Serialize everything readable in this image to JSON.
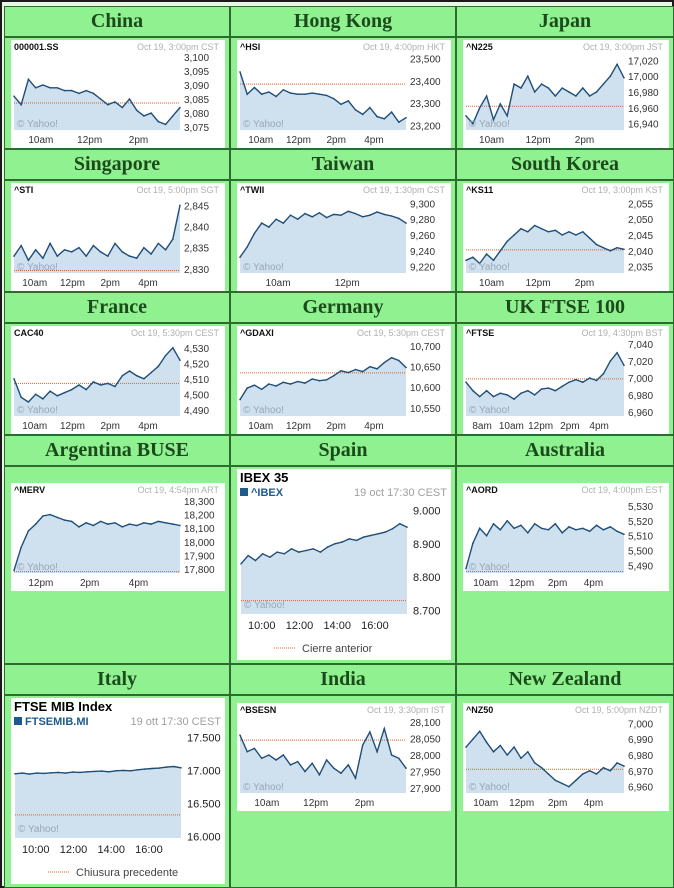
{
  "colors": {
    "cell_background": "#90f190",
    "cell_border": "#2e6b2e",
    "heading_text": "#1c4a1c",
    "line": "#1f4e79",
    "area_fill": "#cfe0ee",
    "baseline_dotted": "#d9602b",
    "symbol_square": "#1f5a8c"
  },
  "watermark": "© Yahoo!",
  "chart_data": [
    {
      "region": "China",
      "type": "area",
      "symbol": "000001.SS",
      "stamp": "Oct 19, 3:00pm CST",
      "x_ticks": [
        "10am",
        "12pm",
        "2pm"
      ],
      "y_ticks": [
        "3,100",
        "3,095",
        "3,090",
        "3,085",
        "3,080",
        "3,075"
      ],
      "ylim": [
        3074,
        3101
      ],
      "prev_close": 3083.6,
      "y": [
        3086,
        3083,
        3092,
        3089,
        3090,
        3089,
        3089,
        3088,
        3088,
        3087,
        3088,
        3087,
        3085,
        3083,
        3084,
        3082,
        3085,
        3081,
        3079,
        3080,
        3077,
        3076,
        3079,
        3082
      ]
    },
    {
      "region": "Hong Kong",
      "type": "area",
      "symbol": "^HSI",
      "stamp": "Oct 19, 4:00pm HKT",
      "x_ticks": [
        "10am",
        "12pm",
        "2pm",
        "4pm"
      ],
      "y_ticks": [
        "23,500",
        "23,400",
        "23,300",
        "23,200"
      ],
      "ylim": [
        23180,
        23520
      ],
      "prev_close": 23385,
      "y": [
        23440,
        23340,
        23370,
        23340,
        23350,
        23330,
        23360,
        23345,
        23340,
        23340,
        23345,
        23340,
        23335,
        23320,
        23295,
        23310,
        23270,
        23250,
        23280,
        23240,
        23230,
        23260,
        23215,
        23235
      ]
    },
    {
      "region": "Japan",
      "type": "area",
      "symbol": "^N225",
      "stamp": "Oct 19, 3:00pm JST",
      "x_ticks": [
        "10am",
        "12pm",
        "2pm"
      ],
      "y_ticks": [
        "17,020",
        "17,000",
        "16,980",
        "16,960",
        "16,940"
      ],
      "ylim": [
        16932,
        17028
      ],
      "prev_close": 16962,
      "y": [
        16950,
        16940,
        16960,
        16975,
        16945,
        16965,
        16950,
        16990,
        16985,
        17000,
        16980,
        16990,
        16985,
        16975,
        16985,
        16980,
        16975,
        16985,
        16975,
        16980,
        16990,
        17000,
        17015,
        16998
      ]
    },
    {
      "region": "Singapore",
      "type": "area",
      "symbol": "^STI",
      "stamp": "Oct 19, 5:00pm SGT",
      "x_ticks": [
        "10am",
        "12pm",
        "2pm",
        "4pm"
      ],
      "y_ticks": [
        "2,845",
        "2,840",
        "2,835",
        "2,830"
      ],
      "ylim": [
        2829,
        2847
      ],
      "prev_close": 2829.6,
      "y": [
        2833,
        2835.5,
        2832,
        2834.5,
        2832.5,
        2836,
        2833,
        2834.5,
        2834,
        2835,
        2833,
        2835.5,
        2834,
        2833,
        2836,
        2834,
        2833,
        2832.5,
        2835,
        2833.5,
        2836,
        2834.5,
        2837,
        2845
      ]
    },
    {
      "region": "Taiwan",
      "type": "area",
      "symbol": "^TWII",
      "stamp": "Oct 19, 1:30pm CST",
      "x_ticks": [
        "10am",
        "12pm"
      ],
      "y_ticks": [
        "9,300",
        "9,280",
        "9,260",
        "9,240",
        "9,220"
      ],
      "ylim": [
        9212,
        9308
      ],
      "prev_close": null,
      "y": [
        9232,
        9245,
        9262,
        9275,
        9270,
        9280,
        9275,
        9285,
        9280,
        9287,
        9283,
        9288,
        9282,
        9286,
        9285,
        9290,
        9287,
        9283,
        9285,
        9289,
        9286,
        9284,
        9281,
        9275
      ]
    },
    {
      "region": "South Korea",
      "type": "area",
      "symbol": "^KS11",
      "stamp": "Oct 19, 3:00pm KST",
      "x_ticks": [
        "10am",
        "12pm",
        "2pm"
      ],
      "y_ticks": [
        "2,055",
        "2,050",
        "2,045",
        "2,040",
        "2,035"
      ],
      "ylim": [
        2033,
        2057
      ],
      "prev_close": 2040.3,
      "y": [
        2037,
        2038,
        2036,
        2039,
        2037,
        2040,
        2043,
        2045,
        2047,
        2046,
        2048,
        2047,
        2046,
        2046.5,
        2045,
        2046,
        2045,
        2046,
        2044,
        2042,
        2041,
        2040,
        2041,
        2040.5
      ]
    },
    {
      "region": "France",
      "type": "area",
      "symbol": "CAC40",
      "stamp": "Oct 19, 5:30pm CEST",
      "x_ticks": [
        "10am",
        "12pm",
        "2pm",
        "4pm"
      ],
      "y_ticks": [
        "4,530",
        "4,520",
        "4,510",
        "4,500",
        "4,490"
      ],
      "ylim": [
        4486,
        4535
      ],
      "prev_close": 4507,
      "y": [
        4510,
        4498,
        4495,
        4500,
        4497,
        4502,
        4499,
        4501,
        4503,
        4506,
        4503,
        4508,
        4506,
        4507,
        4505,
        4512,
        4515,
        4512,
        4510,
        4514,
        4518,
        4525,
        4530,
        4522
      ]
    },
    {
      "region": "Germany",
      "type": "area",
      "symbol": "^GDAXI",
      "stamp": "Oct 19, 5:30pm CEST",
      "x_ticks": [
        "10am",
        "12pm",
        "2pm",
        "4pm"
      ],
      "y_ticks": [
        "10,700",
        "10,650",
        "10,600",
        "10,550"
      ],
      "ylim": [
        10530,
        10715
      ],
      "prev_close": 10635,
      "y": [
        10570,
        10598,
        10605,
        10595,
        10608,
        10603,
        10612,
        10608,
        10614,
        10610,
        10620,
        10616,
        10618,
        10628,
        10640,
        10636,
        10643,
        10638,
        10650,
        10645,
        10660,
        10672,
        10665,
        10648
      ]
    },
    {
      "region": "UK FTSE 100",
      "type": "area",
      "symbol": "^FTSE",
      "stamp": "Oct 19, 4:30pm BST",
      "x_ticks": [
        "8am",
        "10am",
        "12pm",
        "2pm",
        "4pm"
      ],
      "y_ticks": [
        "7,040",
        "7,020",
        "7,000",
        "6,980",
        "6,960"
      ],
      "ylim": [
        6955,
        7045
      ],
      "prev_close": 6999,
      "y": [
        6995,
        6985,
        6978,
        6985,
        6978,
        6982,
        6980,
        6975,
        6982,
        6985,
        6980,
        6987,
        6988,
        6985,
        6990,
        6995,
        6998,
        6995,
        7000,
        6997,
        7005,
        7020,
        7030,
        7015
      ]
    },
    {
      "region": "Argentina BUSE",
      "type": "area",
      "symbol": "^MERV",
      "stamp": "Oct 19, 4:54pm ART",
      "x_ticks": [
        "12pm",
        "2pm",
        "4pm"
      ],
      "y_ticks": [
        "18,300",
        "18,200",
        "18,100",
        "18,000",
        "17,900",
        "17,800"
      ],
      "ylim": [
        17770,
        18330
      ],
      "prev_close": 17780,
      "y": [
        17790,
        17960,
        18080,
        18130,
        18190,
        18200,
        18180,
        18160,
        18150,
        18110,
        18140,
        18120,
        18150,
        18130,
        18140,
        18110,
        18130,
        18120,
        18140,
        18130,
        18150,
        18140,
        18130,
        18120
      ]
    },
    {
      "region": "Spain",
      "type": "area",
      "title": "IBEX 35",
      "symbol": "^IBEX",
      "stamp": "19 oct 17:30 CEST",
      "legend": "Cierre anterior",
      "x_ticks": [
        "10:00",
        "12:00",
        "14:00",
        "16:00"
      ],
      "y_ticks": [
        "9.000",
        "8.900",
        "8.800",
        "8.700"
      ],
      "ylim": [
        8690,
        9010
      ],
      "prev_close": 8730,
      "y": [
        8840,
        8865,
        8850,
        8870,
        8860,
        8875,
        8870,
        8885,
        8875,
        8880,
        8885,
        8875,
        8890,
        8900,
        8905,
        8915,
        8910,
        8920,
        8925,
        8930,
        8935,
        8945,
        8960,
        8950
      ]
    },
    {
      "region": "Australia",
      "type": "area",
      "symbol": "^AORD",
      "stamp": "Oct 19, 4:00pm EST",
      "x_ticks": [
        "10am",
        "12pm",
        "2pm",
        "4pm"
      ],
      "y_ticks": [
        "5,530",
        "5,520",
        "5,510",
        "5,500",
        "5,490"
      ],
      "ylim": [
        5485,
        5536
      ],
      "prev_close": 5486,
      "y": [
        5488,
        5505,
        5515,
        5510,
        5518,
        5514,
        5520,
        5515,
        5517,
        5512,
        5518,
        5515,
        5514,
        5518,
        5512,
        5516,
        5514,
        5515,
        5513,
        5517,
        5514,
        5516,
        5513,
        5511
      ]
    },
    {
      "region": "Italy",
      "type": "area",
      "title": "FTSE MIB Index",
      "symbol": "FTSEMIB.MI",
      "stamp": "19 ott 17:30 CEST",
      "legend": "Chiusura precedente",
      "x_ticks": [
        "10:00",
        "12:00",
        "14:00",
        "16:00"
      ],
      "y_ticks": [
        "17.500",
        "17.000",
        "16.500",
        "16.000"
      ],
      "ylim": [
        15980,
        17520
      ],
      "prev_close": 16330,
      "y": [
        16950,
        16960,
        16945,
        16960,
        16955,
        16965,
        16970,
        16960,
        16975,
        16970,
        16980,
        16985,
        16990,
        16980,
        16995,
        17000,
        16995,
        17010,
        17020,
        17030,
        17035,
        17050,
        17060,
        17040
      ]
    },
    {
      "region": "India",
      "type": "area",
      "symbol": "^BSESN",
      "stamp": "Oct 19, 3:30pm IST",
      "x_ticks": [
        "10am",
        "12pm",
        "2pm"
      ],
      "y_ticks": [
        "28,100",
        "28,050",
        "28,000",
        "27,950",
        "27,900"
      ],
      "ylim": [
        27885,
        28115
      ],
      "prev_close": 28045,
      "y": [
        28060,
        28010,
        28020,
        27990,
        28000,
        27985,
        28000,
        27970,
        27980,
        27950,
        27975,
        27940,
        27985,
        27960,
        27945,
        27970,
        27930,
        28030,
        28070,
        28010,
        28080,
        28000,
        27990,
        27960
      ]
    },
    {
      "region": "New Zealand",
      "type": "area",
      "symbol": "^NZ50",
      "stamp": "Oct 19, 5:00pm NZDT",
      "x_ticks": [
        "10am",
        "12pm",
        "2pm",
        "4pm"
      ],
      "y_ticks": [
        "7,000",
        "6,990",
        "6,980",
        "6,970",
        "6,960"
      ],
      "ylim": [
        6956,
        7004
      ],
      "prev_close": 6971,
      "y": [
        6985,
        6990,
        6995,
        6988,
        6982,
        6986,
        6980,
        6985,
        6978,
        6982,
        6975,
        6972,
        6968,
        6964,
        6962,
        6960,
        6964,
        6968,
        6970,
        6968,
        6972,
        6970,
        6975,
        6973
      ]
    }
  ]
}
